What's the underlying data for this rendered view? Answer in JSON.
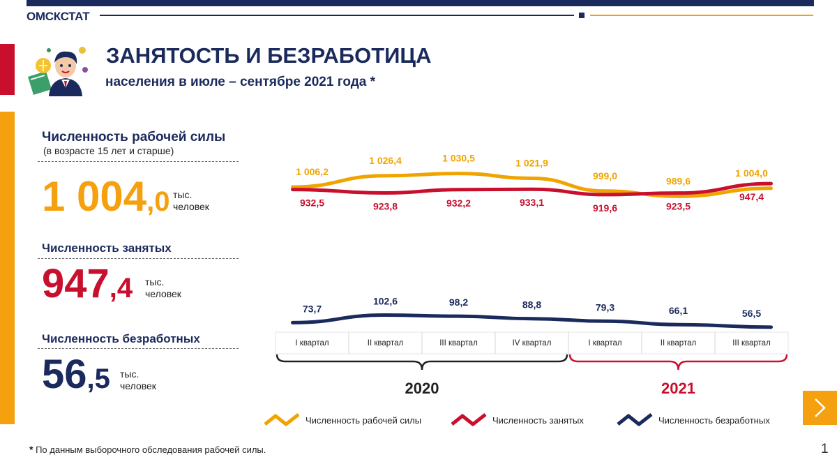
{
  "header": {
    "brand": "ОМСКСТАТ"
  },
  "title": "ЗАНЯТОСТЬ И БЕЗРАБОТИЦА",
  "subtitle": "населения в июле – сентябре 2021 года *",
  "summary": {
    "labor_force": {
      "label": "Численность рабочей силы",
      "sub": "(в возрасте 15 лет и старше)",
      "int_part": "1 004",
      "dec_part": ",0",
      "unit1": "тыс.",
      "unit2": "человек",
      "color": "#f5a00f"
    },
    "employed": {
      "label": "Численность  занятых",
      "int_part": "947",
      "dec_part": ",4",
      "unit1": "тыс.",
      "unit2": "человек",
      "color": "#c8102e"
    },
    "unemployed": {
      "label": "Численность  безработных",
      "int_part": "56",
      "dec_part": ",5",
      "unit1": "тыс.",
      "unit2": "человек",
      "color": "#1b2a5c"
    }
  },
  "chart_data": {
    "type": "line",
    "categories": [
      "I квартал",
      "II квартал",
      "III квартал",
      "IV квартал",
      "I квартал",
      "II квартал",
      "III квартал"
    ],
    "groups": [
      {
        "label": "2020",
        "from": 0,
        "to": 3,
        "color": "#222222"
      },
      {
        "label": "2021",
        "from": 4,
        "to": 6,
        "color": "#c8102e"
      }
    ],
    "series": [
      {
        "name": "Численность рабочей силы",
        "color": "#f0a400",
        "values": [
          1006.2,
          1026.4,
          1030.5,
          1021.9,
          999.0,
          989.6,
          1004.0
        ],
        "labels": [
          "1 006,2",
          "1 026,4",
          "1 030,5",
          "1 021,9",
          "999,0",
          "989,6",
          "1 004,0"
        ]
      },
      {
        "name": "Численность занятых",
        "color": "#c8102e",
        "values": [
          932.5,
          923.8,
          932.2,
          933.1,
          919.6,
          923.5,
          947.4
        ],
        "labels": [
          "932,5",
          "923,8",
          "932,2",
          "933,1",
          "919,6",
          "923,5",
          "947,4"
        ]
      },
      {
        "name": "Численность безработных",
        "color": "#1b2a5c",
        "values": [
          73.7,
          102.6,
          98.2,
          88.8,
          79.3,
          66.1,
          56.5
        ],
        "labels": [
          "73,7",
          "102,6",
          "98,2",
          "88,8",
          "79,3",
          "66,1",
          "56,5"
        ]
      }
    ]
  },
  "legend": {
    "items": [
      {
        "label": "Численность рабочей силы",
        "color": "#f0a400"
      },
      {
        "label": "Численность  занятых",
        "color": "#c8102e"
      },
      {
        "label": "Численность  безработных",
        "color": "#1b2a5c"
      }
    ]
  },
  "footnote": {
    "star": "*",
    "text": " По данным выборочного обследования рабочей силы."
  },
  "page_number": "1"
}
